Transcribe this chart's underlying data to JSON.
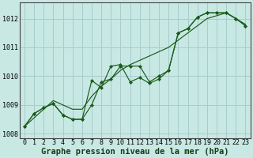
{
  "xlabel": "Graphe pression niveau de la mer (hPa)",
  "bg_color": "#c8e8e4",
  "grid_color": "#a8cccc",
  "line_color": "#1a5c1a",
  "marker_color": "#1a5c1a",
  "hours": [
    0,
    1,
    2,
    3,
    4,
    5,
    6,
    7,
    8,
    9,
    10,
    11,
    12,
    13,
    14,
    15,
    16,
    17,
    18,
    19,
    20,
    21,
    22,
    23
  ],
  "series_trend": [
    1008.25,
    1008.55,
    1008.85,
    1009.15,
    1009.0,
    1008.85,
    1008.85,
    1009.3,
    1009.65,
    1009.9,
    1010.2,
    1010.4,
    1010.55,
    1010.7,
    1010.85,
    1011.0,
    1011.25,
    1011.5,
    1011.75,
    1012.0,
    1012.1,
    1012.2,
    1012.0,
    1011.8
  ],
  "series_jagged": [
    1008.25,
    1008.7,
    1008.9,
    1009.05,
    1008.65,
    1008.5,
    1008.5,
    1009.85,
    1009.6,
    1010.35,
    1010.4,
    1009.8,
    1009.95,
    1009.75,
    1009.9,
    1010.2,
    1011.5,
    1011.65,
    1012.05,
    1012.2,
    1012.2,
    1012.2,
    1012.0,
    1011.75
  ],
  "series_smooth": [
    1008.25,
    1008.7,
    1008.9,
    1009.05,
    1008.65,
    1008.5,
    1008.5,
    1009.0,
    1009.8,
    1009.9,
    1010.35,
    1010.35,
    1010.35,
    1009.8,
    1010.0,
    1010.2,
    1011.5,
    1011.65,
    1012.05,
    1012.2,
    1012.2,
    1012.2,
    1012.0,
    1011.75
  ],
  "ylim": [
    1007.85,
    1012.55
  ],
  "yticks": [
    1008,
    1009,
    1010,
    1011,
    1012
  ],
  "xticks": [
    0,
    1,
    2,
    3,
    4,
    5,
    6,
    7,
    8,
    9,
    10,
    11,
    12,
    13,
    14,
    15,
    16,
    17,
    18,
    19,
    20,
    21,
    22,
    23
  ],
  "xlabel_fontsize": 7.5,
  "tick_fontsize": 6.0
}
